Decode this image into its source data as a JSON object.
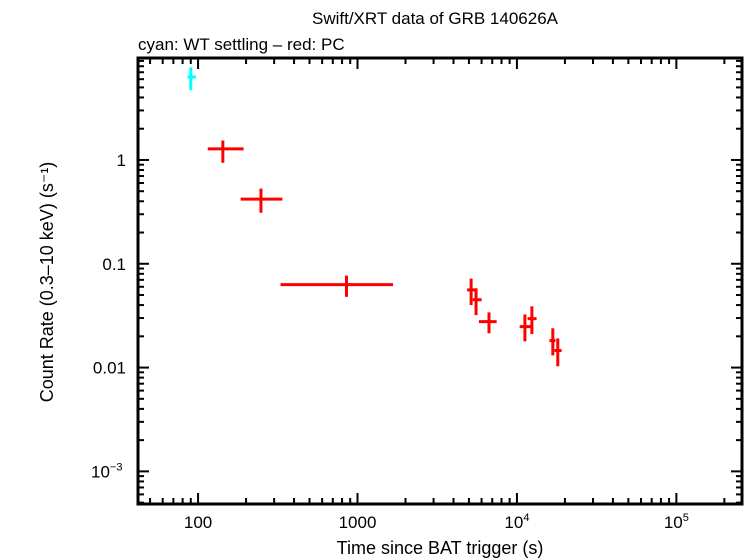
{
  "chart_data": {
    "type": "scatter",
    "title": "Swift/XRT data of GRB 140626A",
    "subtitle": "cyan: WT settling – red: PC",
    "xlabel": "Time since BAT trigger (s)",
    "ylabel": "Count Rate (0.3–10 keV) (s⁻¹)",
    "xscale": "log",
    "yscale": "log",
    "xlim": [
      42,
      258000
    ],
    "ylim": [
      0.000485,
      9.6
    ],
    "grid": false,
    "x_ticks": [
      {
        "value": 100,
        "label": "100"
      },
      {
        "value": 1000,
        "label": "1000"
      },
      {
        "value": 10000,
        "label": "10",
        "exp": "4"
      },
      {
        "value": 100000,
        "label": "10",
        "exp": "5"
      }
    ],
    "y_ticks": [
      {
        "value": 0.001,
        "label": "10",
        "exp": "−3"
      },
      {
        "value": 0.01,
        "label": "0.01"
      },
      {
        "value": 0.1,
        "label": "0.1"
      },
      {
        "value": 1,
        "label": "1"
      }
    ],
    "colors": {
      "wt": "#00ffff",
      "pc": "#ff0000",
      "axes": "#000000"
    },
    "series": [
      {
        "mode": "WT",
        "color": "#00ffff",
        "points": [
          {
            "x": 90,
            "xlo": 86,
            "xhi": 97,
            "y": 6.3,
            "ylo": 4.7,
            "yhi": 7.8
          }
        ]
      },
      {
        "mode": "PC",
        "color": "#ff0000",
        "points": [
          {
            "x": 143,
            "xlo": 115,
            "xhi": 193,
            "y": 1.28,
            "ylo": 0.94,
            "yhi": 1.54
          },
          {
            "x": 248,
            "xlo": 185,
            "xhi": 338,
            "y": 0.42,
            "ylo": 0.31,
            "yhi": 0.53
          },
          {
            "x": 853,
            "xlo": 329,
            "xhi": 1671,
            "y": 0.063,
            "ylo": 0.048,
            "yhi": 0.077
          },
          {
            "x": 5160,
            "xlo": 4870,
            "xhi": 5655,
            "y": 0.056,
            "ylo": 0.04,
            "yhi": 0.072
          },
          {
            "x": 5540,
            "xlo": 5280,
            "xhi": 6010,
            "y": 0.045,
            "ylo": 0.032,
            "yhi": 0.058
          },
          {
            "x": 6680,
            "xlo": 5770,
            "xhi": 7460,
            "y": 0.0277,
            "ylo": 0.0214,
            "yhi": 0.034
          },
          {
            "x": 11220,
            "xlo": 10400,
            "xhi": 12190,
            "y": 0.0248,
            "ylo": 0.0179,
            "yhi": 0.0325
          },
          {
            "x": 12410,
            "xlo": 11670,
            "xhi": 13280,
            "y": 0.0296,
            "ylo": 0.021,
            "yhi": 0.0389
          },
          {
            "x": 16790,
            "xlo": 16000,
            "xhi": 17450,
            "y": 0.0182,
            "ylo": 0.0131,
            "yhi": 0.0239
          },
          {
            "x": 18040,
            "xlo": 17200,
            "xhi": 19050,
            "y": 0.0146,
            "ylo": 0.0103,
            "yhi": 0.0191
          }
        ]
      }
    ]
  }
}
